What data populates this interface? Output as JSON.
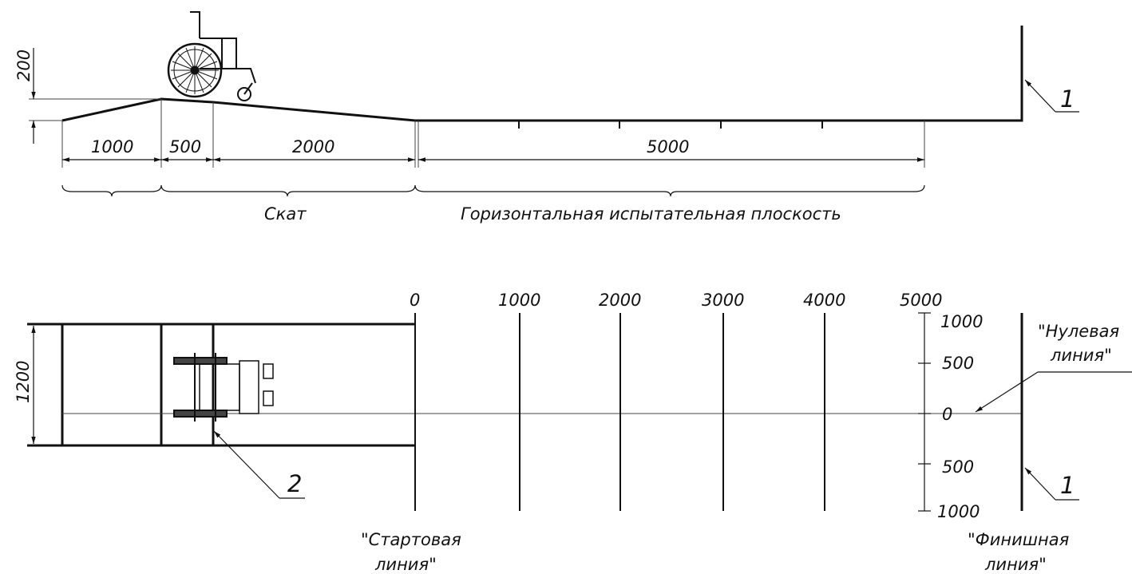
{
  "side_view": {
    "height_dim": "200",
    "segment_dims": [
      "1000",
      "500",
      "2000",
      "5000"
    ],
    "ramp_caption": "Скат",
    "plane_caption": "Горизонтальная испытательная плоскость",
    "finish_callout": "1"
  },
  "plan_view": {
    "width_dim": "1200",
    "distance_ticks": [
      "0",
      "1000",
      "2000",
      "3000",
      "4000",
      "5000"
    ],
    "lateral_ticks": [
      "1000",
      "500",
      "0",
      "500",
      "1000"
    ],
    "start_line_label": [
      "\"Стартовая",
      "линия\""
    ],
    "finish_line_label": [
      "\"Финишная",
      "линия\""
    ],
    "zero_line_label": [
      "\"Нулевая",
      "линия\""
    ],
    "finish_callout": "1",
    "wheelchair_callout": "2"
  }
}
